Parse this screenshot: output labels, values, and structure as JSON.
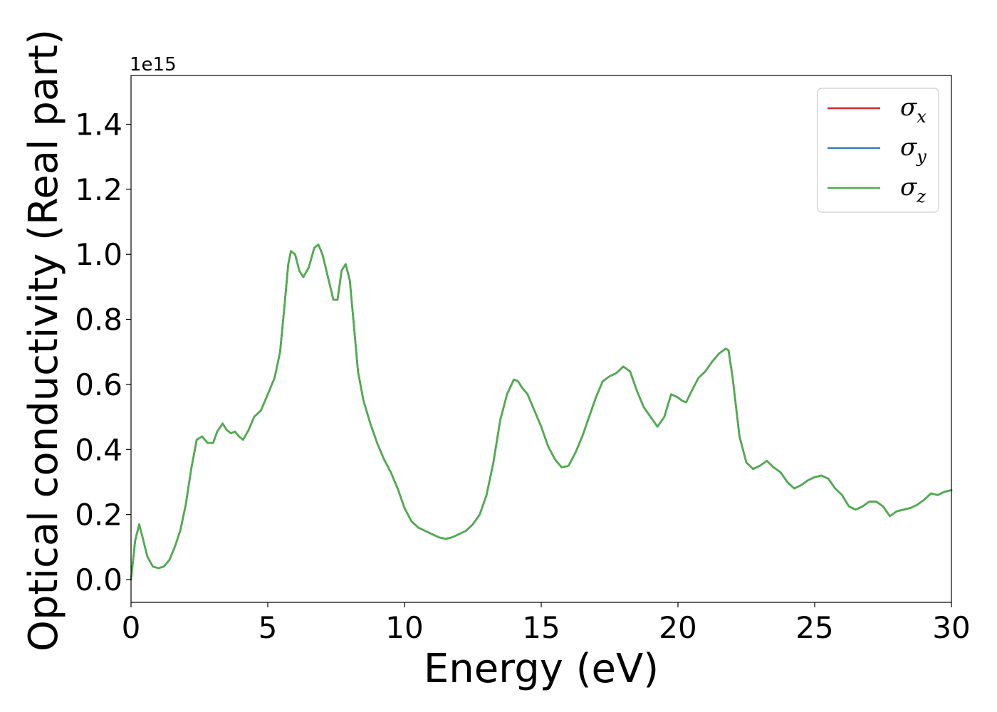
{
  "chart_data": {
    "type": "line",
    "title": "",
    "xlabel": "Energy (eV)",
    "ylabel": "Optical conductivity (Real part)",
    "y_offset_label": "1e15",
    "xlim": [
      0,
      30
    ],
    "ylim": [
      -0.07,
      1.55
    ],
    "x_ticks": [
      0,
      5,
      10,
      15,
      20,
      25,
      30
    ],
    "x_tick_labels": [
      "0",
      "5",
      "10",
      "15",
      "20",
      "25",
      "30"
    ],
    "y_ticks": [
      0.0,
      0.2,
      0.4,
      0.6,
      0.8,
      1.0,
      1.2,
      1.4
    ],
    "y_tick_labels": [
      "0.0",
      "0.2",
      "0.4",
      "0.6",
      "0.8",
      "1.0",
      "1.2",
      "1.4"
    ],
    "grid": false,
    "legend_position": "top-right",
    "colors": {
      "sigma_x": "#d62728",
      "sigma_y": "#3a7bb8",
      "sigma_z": "#4daf4a"
    },
    "x": [
      0,
      0.15,
      0.3,
      0.45,
      0.6,
      0.8,
      1.0,
      1.2,
      1.4,
      1.6,
      1.8,
      2.0,
      2.2,
      2.4,
      2.6,
      2.8,
      3.0,
      3.15,
      3.35,
      3.5,
      3.65,
      3.8,
      3.95,
      4.1,
      4.3,
      4.5,
      4.75,
      5.0,
      5.25,
      5.45,
      5.6,
      5.75,
      5.85,
      6.0,
      6.15,
      6.3,
      6.5,
      6.7,
      6.85,
      7.0,
      7.2,
      7.4,
      7.55,
      7.7,
      7.85,
      8.0,
      8.15,
      8.3,
      8.5,
      8.75,
      9.0,
      9.25,
      9.5,
      9.75,
      10.0,
      10.25,
      10.5,
      10.75,
      11.0,
      11.25,
      11.5,
      11.75,
      12.0,
      12.25,
      12.5,
      12.75,
      13.0,
      13.25,
      13.5,
      13.75,
      14.0,
      14.15,
      14.3,
      14.5,
      14.75,
      15.0,
      15.25,
      15.5,
      15.75,
      16.0,
      16.25,
      16.5,
      16.75,
      17.0,
      17.25,
      17.5,
      17.75,
      18.0,
      18.25,
      18.5,
      18.75,
      19.0,
      19.25,
      19.5,
      19.75,
      20.0,
      20.15,
      20.3,
      20.5,
      20.75,
      21.0,
      21.25,
      21.5,
      21.75,
      21.85,
      22.0,
      22.25,
      22.5,
      22.75,
      23.0,
      23.25,
      23.5,
      23.75,
      24.0,
      24.25,
      24.5,
      24.75,
      25.0,
      25.25,
      25.5,
      25.75,
      26.0,
      26.25,
      26.5,
      26.75,
      27.0,
      27.25,
      27.5,
      27.75,
      28.0,
      28.25,
      28.5,
      28.75,
      29.0,
      29.25,
      29.5,
      29.75,
      30.0
    ],
    "series": [
      {
        "name_symbol": "σ",
        "name_sub": "x",
        "color_key": "sigma_x",
        "values": [
          0.0,
          0.12,
          0.17,
          0.12,
          0.07,
          0.04,
          0.035,
          0.04,
          0.06,
          0.1,
          0.15,
          0.23,
          0.34,
          0.43,
          0.44,
          0.42,
          0.42,
          0.455,
          0.48,
          0.46,
          0.45,
          0.455,
          0.44,
          0.43,
          0.46,
          0.5,
          0.52,
          0.57,
          0.62,
          0.7,
          0.83,
          0.97,
          1.01,
          1.0,
          0.95,
          0.93,
          0.96,
          1.02,
          1.03,
          1.0,
          0.93,
          0.86,
          0.86,
          0.95,
          0.97,
          0.92,
          0.78,
          0.64,
          0.55,
          0.48,
          0.42,
          0.37,
          0.33,
          0.28,
          0.22,
          0.18,
          0.16,
          0.15,
          0.14,
          0.13,
          0.125,
          0.13,
          0.14,
          0.15,
          0.17,
          0.2,
          0.26,
          0.36,
          0.49,
          0.57,
          0.615,
          0.61,
          0.59,
          0.57,
          0.52,
          0.47,
          0.41,
          0.37,
          0.345,
          0.35,
          0.39,
          0.44,
          0.5,
          0.56,
          0.61,
          0.625,
          0.635,
          0.655,
          0.64,
          0.58,
          0.53,
          0.5,
          0.47,
          0.5,
          0.57,
          0.56,
          0.55,
          0.545,
          0.58,
          0.62,
          0.64,
          0.67,
          0.695,
          0.71,
          0.705,
          0.62,
          0.44,
          0.36,
          0.34,
          0.35,
          0.365,
          0.345,
          0.33,
          0.3,
          0.28,
          0.29,
          0.305,
          0.315,
          0.32,
          0.31,
          0.28,
          0.26,
          0.225,
          0.215,
          0.225,
          0.24,
          0.24,
          0.225,
          0.195,
          0.21,
          0.215,
          0.22,
          0.23,
          0.245,
          0.265,
          0.26,
          0.27,
          0.275
        ]
      },
      {
        "name_symbol": "σ",
        "name_sub": "y",
        "color_key": "sigma_y",
        "values": [
          0.0,
          0.12,
          0.17,
          0.12,
          0.07,
          0.04,
          0.035,
          0.04,
          0.06,
          0.1,
          0.15,
          0.23,
          0.34,
          0.43,
          0.44,
          0.42,
          0.42,
          0.455,
          0.48,
          0.46,
          0.45,
          0.455,
          0.44,
          0.43,
          0.46,
          0.5,
          0.52,
          0.57,
          0.62,
          0.7,
          0.83,
          0.97,
          1.01,
          1.0,
          0.95,
          0.93,
          0.96,
          1.02,
          1.03,
          1.0,
          0.93,
          0.86,
          0.86,
          0.95,
          0.97,
          0.92,
          0.78,
          0.64,
          0.55,
          0.48,
          0.42,
          0.37,
          0.33,
          0.28,
          0.22,
          0.18,
          0.16,
          0.15,
          0.14,
          0.13,
          0.125,
          0.13,
          0.14,
          0.15,
          0.17,
          0.2,
          0.26,
          0.36,
          0.49,
          0.57,
          0.615,
          0.61,
          0.59,
          0.57,
          0.52,
          0.47,
          0.41,
          0.37,
          0.345,
          0.35,
          0.39,
          0.44,
          0.5,
          0.56,
          0.61,
          0.625,
          0.635,
          0.655,
          0.64,
          0.58,
          0.53,
          0.5,
          0.47,
          0.5,
          0.57,
          0.56,
          0.55,
          0.545,
          0.58,
          0.62,
          0.64,
          0.67,
          0.695,
          0.71,
          0.705,
          0.62,
          0.44,
          0.36,
          0.34,
          0.35,
          0.365,
          0.345,
          0.33,
          0.3,
          0.28,
          0.29,
          0.305,
          0.315,
          0.32,
          0.31,
          0.28,
          0.26,
          0.225,
          0.215,
          0.225,
          0.24,
          0.24,
          0.225,
          0.195,
          0.21,
          0.215,
          0.22,
          0.23,
          0.245,
          0.265,
          0.26,
          0.27,
          0.275
        ]
      },
      {
        "name_symbol": "σ",
        "name_sub": "z",
        "color_key": "sigma_z",
        "values": [
          0.0,
          0.12,
          0.17,
          0.12,
          0.07,
          0.04,
          0.035,
          0.04,
          0.06,
          0.1,
          0.15,
          0.23,
          0.34,
          0.43,
          0.44,
          0.42,
          0.42,
          0.455,
          0.48,
          0.46,
          0.45,
          0.455,
          0.44,
          0.43,
          0.46,
          0.5,
          0.52,
          0.57,
          0.62,
          0.7,
          0.83,
          0.97,
          1.01,
          1.0,
          0.95,
          0.93,
          0.96,
          1.02,
          1.03,
          1.0,
          0.93,
          0.86,
          0.86,
          0.95,
          0.97,
          0.92,
          0.78,
          0.64,
          0.55,
          0.48,
          0.42,
          0.37,
          0.33,
          0.28,
          0.22,
          0.18,
          0.16,
          0.15,
          0.14,
          0.13,
          0.125,
          0.13,
          0.14,
          0.15,
          0.17,
          0.2,
          0.26,
          0.36,
          0.49,
          0.57,
          0.615,
          0.61,
          0.59,
          0.57,
          0.52,
          0.47,
          0.41,
          0.37,
          0.345,
          0.35,
          0.39,
          0.44,
          0.5,
          0.56,
          0.61,
          0.625,
          0.635,
          0.655,
          0.64,
          0.58,
          0.53,
          0.5,
          0.47,
          0.5,
          0.57,
          0.56,
          0.55,
          0.545,
          0.58,
          0.62,
          0.64,
          0.67,
          0.695,
          0.71,
          0.705,
          0.62,
          0.44,
          0.36,
          0.34,
          0.35,
          0.365,
          0.345,
          0.33,
          0.3,
          0.28,
          0.29,
          0.305,
          0.315,
          0.32,
          0.31,
          0.28,
          0.26,
          0.225,
          0.215,
          0.225,
          0.24,
          0.24,
          0.225,
          0.195,
          0.21,
          0.215,
          0.22,
          0.23,
          0.245,
          0.265,
          0.26,
          0.27,
          0.275
        ]
      }
    ]
  }
}
